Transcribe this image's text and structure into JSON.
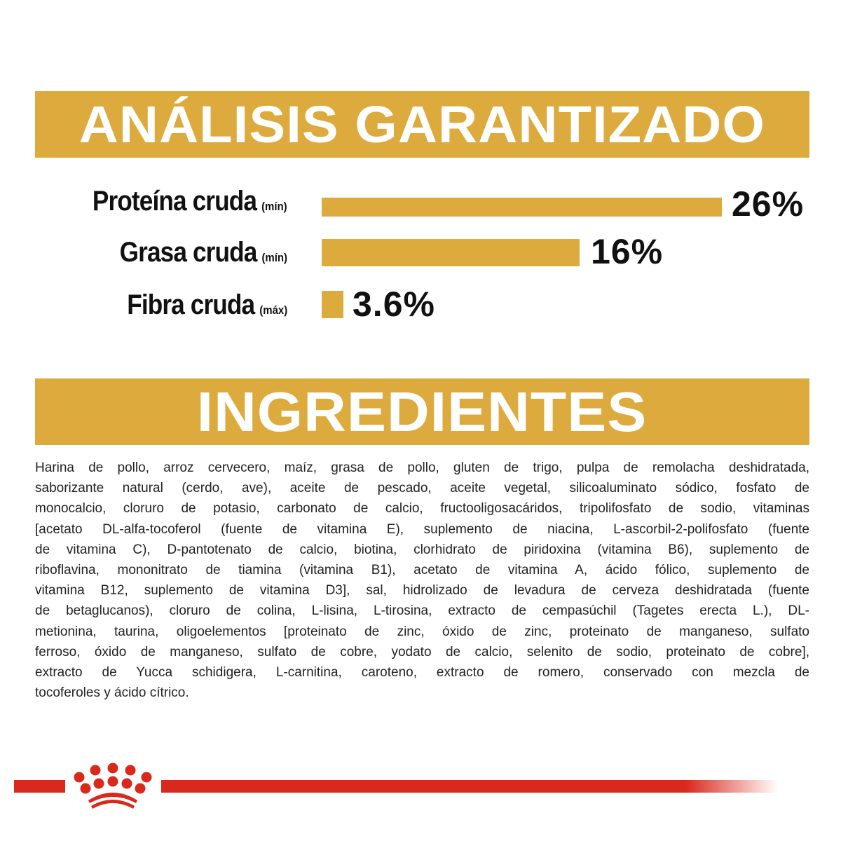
{
  "analysis": {
    "title": "ANÁLISIS GARANTIZADO",
    "rows": [
      {
        "name": "Proteína cruda",
        "qualifier": "(mín)",
        "value": "26%"
      },
      {
        "name": "Grasa cruda",
        "qualifier": "(mín)",
        "value": "16%"
      },
      {
        "name": "Fibra cruda",
        "qualifier": "(máx)",
        "value": "3.6%"
      }
    ],
    "bar_color": "#ddab3d"
  },
  "ingredients": {
    "title": "INGREDIENTES",
    "lines": [
      "Harina de pollo, arroz cervecero, maíz, grasa de pollo, gluten de trigo, pulpa de remolacha deshidratada,",
      "saborizante natural (cerdo, ave), aceite de pescado, aceite vegetal, silicoaluminato sódico, fosfato de",
      "monocalcio, cloruro de potasio, carbonato de calcio, fructooligosacáridos, tripolifosfato de sodio, vitaminas",
      "[acetato DL-alfa-tocoferol (fuente de vitamina E), suplemento de niacina, L-ascorbil-2-polifosfato (fuente",
      "de vitamina C), D-pantotenato de calcio, biotina, clorhidrato de piridoxina (vitamina B6), suplemento de",
      "riboflavina, mononitrato de tiamina (vitamina B1), acetato de vitamina A, ácido fólico, suplemento de",
      "vitamina B12, suplemento de vitamina D3], sal, hidrolizado de levadura de cerveza deshidratada (fuente",
      "de betaglucanos), cloruro de colina, L-lisina, L-tirosina, extracto de cempasúchil (Tagetes erecta L.), DL-",
      "metionina, taurina, oligoelementos [proteinato de zinc, óxido de zinc, proteinato de manganeso, sulfato",
      "ferroso, óxido de manganeso, sulfato de cobre, yodato de calcio, selenito de sodio, proteinato de cobre],",
      "extracto de Yucca schidigera, L-carnitina, caroteno, extracto de romero, conservado con mezcla de",
      "tocoferoles y ácido cítrico."
    ]
  },
  "footer": {
    "logo": "crown-icon",
    "color": "#d9291c"
  }
}
